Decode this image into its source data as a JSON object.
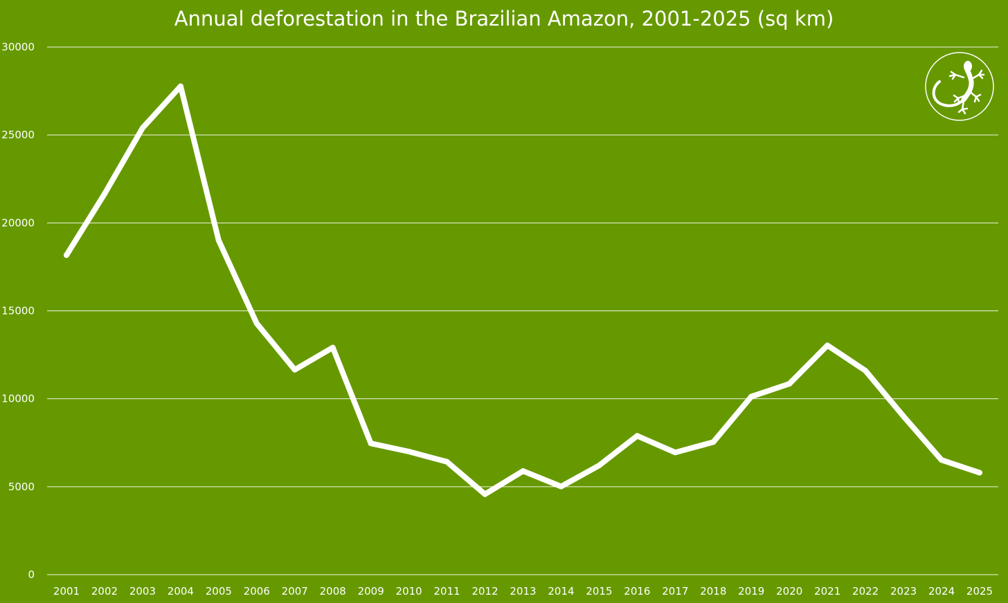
{
  "colors": {
    "background": "#669900",
    "line": "#ffffff",
    "gridline": "#ffffff",
    "text": "#ffffff"
  },
  "logo": {
    "icon": "gecko-icon"
  },
  "chart_data": {
    "type": "line",
    "title": "Annual deforestation in the Brazilian Amazon, 2001-2025 (sq km)",
    "xlabel": "",
    "ylabel": "",
    "ylim": [
      0,
      30000
    ],
    "yticks": [
      "0",
      "5000",
      "10000",
      "15000",
      "20000",
      "25000",
      "30000"
    ],
    "grid": true,
    "legend": "none",
    "categories": [
      "2001",
      "2002",
      "2003",
      "2004",
      "2005",
      "2006",
      "2007",
      "2008",
      "2009",
      "2010",
      "2011",
      "2012",
      "2013",
      "2014",
      "2015",
      "2016",
      "2017",
      "2018",
      "2019",
      "2020",
      "2021",
      "2022",
      "2023",
      "2024",
      "2025"
    ],
    "series": [
      {
        "name": "Annual deforestation (sq km)",
        "values": [
          18165,
          21650,
          25396,
          27772,
          19014,
          14286,
          11651,
          12911,
          7464,
          7000,
          6418,
          4571,
          5891,
          5012,
          6207,
          7893,
          6947,
          7536,
          10129,
          10851,
          13038,
          11594,
          9001,
          6518,
          5796
        ]
      }
    ]
  }
}
